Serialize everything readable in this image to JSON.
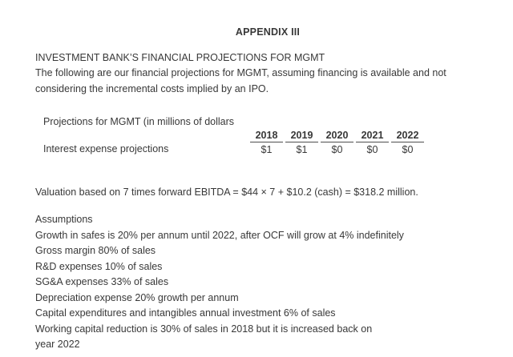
{
  "page": {
    "title": "APPENDIX III",
    "heading": "INVESTMENT BANK’S FINANCIAL PROJECTIONS FOR MGMT",
    "intro_lines": [
      "The following are our financial projections for MGMT, assuming financing is available and not",
      "considering the incremental costs implied by an IPO."
    ]
  },
  "projections": {
    "caption": "Projections for MGMT (in millions of dollars",
    "row_label": "Interest expense projections",
    "years": [
      "2018",
      "2019",
      "2020",
      "2021",
      "2022"
    ],
    "values": [
      "$1",
      "$1",
      "$0",
      "$0",
      "$0"
    ]
  },
  "valuation": "Valuation based on 7 times forward EBITDA = $44 × 7 + $10.2 (cash) = $318.2 million.",
  "assumptions": {
    "heading": "Assumptions",
    "items": [
      "Growth in safes is 20% per annum until 2022, after OCF will grow at 4% indefinitely",
      "Gross margin 80% of sales",
      "R&D expenses 10% of sales",
      "SG&A expenses 33% of sales",
      "Depreciation expense 20% growth per annum",
      "Capital expenditures and intangibles annual investment 6% of sales",
      "Working capital reduction is 30% of sales in 2018 but it is increased back on",
      "year 2022"
    ]
  },
  "colors": {
    "text": "#383838",
    "rule": "#4d4d4d",
    "background": "#ffffff"
  }
}
